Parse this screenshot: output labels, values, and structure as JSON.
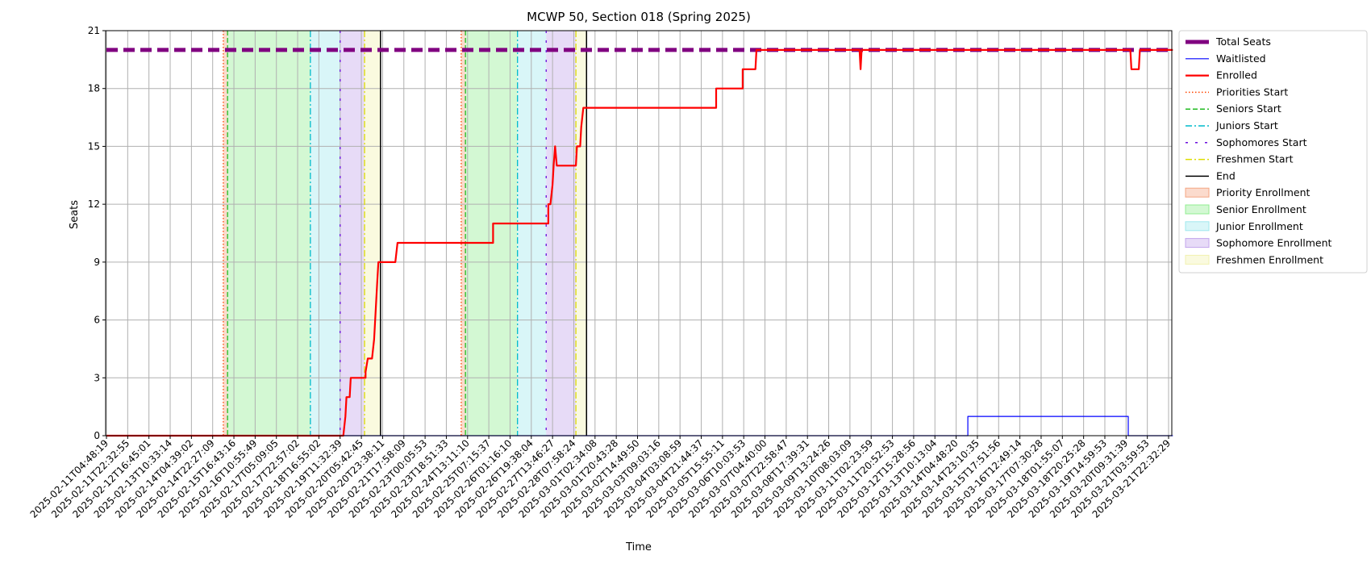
{
  "chart_data": {
    "type": "line",
    "title": "MCWP 50, Section 018 (Spring 2025)",
    "xlabel": "Time",
    "ylabel": "Seats",
    "ylim": [
      0,
      21
    ],
    "y_ticks": [
      0,
      3,
      6,
      9,
      12,
      15,
      18,
      21
    ],
    "grid": true,
    "legend_placement": "outside-right-top",
    "x_tick_labels": [
      "2025-02-11T04:48:19",
      "2025-02-11T22:32:55",
      "2025-02-12T16:45:01",
      "2025-02-13T10:33:14",
      "2025-02-14T04:39:02",
      "2025-02-14T22:27:09",
      "2025-02-15T16:43:16",
      "2025-02-16T10:55:49",
      "2025-02-17T05:09:05",
      "2025-02-17T22:57:02",
      "2025-02-18T16:55:02",
      "2025-02-19T11:32:39",
      "2025-02-20T05:42:45",
      "2025-02-20T23:38:11",
      "2025-02-21T17:58:09",
      "2025-02-23T00:05:53",
      "2025-02-23T18:51:33",
      "2025-02-24T13:11:10",
      "2025-02-25T07:15:37",
      "2025-02-26T01:16:10",
      "2025-02-26T19:38:04",
      "2025-02-27T13:46:27",
      "2025-02-28T07:58:24",
      "2025-03-01T02:34:08",
      "2025-03-01T20:43:28",
      "2025-03-02T14:49:50",
      "2025-03-03T09:03:16",
      "2025-03-04T03:08:59",
      "2025-03-04T21:44:37",
      "2025-03-05T15:55:11",
      "2025-03-06T10:03:53",
      "2025-03-07T04:40:00",
      "2025-03-07T22:58:47",
      "2025-03-08T17:39:31",
      "2025-03-09T13:24:26",
      "2025-03-10T08:03:09",
      "2025-03-11T02:23:59",
      "2025-03-11T20:52:53",
      "2025-03-12T15:28:56",
      "2025-03-13T10:13:04",
      "2025-03-14T04:48:20",
      "2025-03-14T23:10:35",
      "2025-03-15T17:51:56",
      "2025-03-16T12:49:14",
      "2025-03-17T07:30:28",
      "2025-03-18T01:55:07",
      "2025-03-18T20:25:28",
      "2025-03-19T14:59:53",
      "2025-03-20T09:31:39",
      "2025-03-21T03:59:53",
      "2025-03-21T22:32:29"
    ],
    "x_range_ticks": [
      0,
      50
    ],
    "series": [
      {
        "name": "Total Seats",
        "color": "#800080",
        "style": "dashed-thick",
        "points": [
          [
            0,
            20
          ],
          [
            50.2,
            20
          ]
        ]
      },
      {
        "name": "Waitlisted",
        "color": "#0000ff",
        "style": "solid-thin",
        "points": [
          [
            0,
            0
          ],
          [
            40.55,
            0
          ],
          [
            40.55,
            1
          ],
          [
            48.1,
            1
          ],
          [
            48.1,
            0
          ],
          [
            50.2,
            0
          ]
        ]
      },
      {
        "name": "Enrolled",
        "color": "#ff0000",
        "style": "solid",
        "points": [
          [
            0,
            0
          ],
          [
            11.15,
            0
          ],
          [
            11.25,
            1
          ],
          [
            11.3,
            2
          ],
          [
            11.45,
            2
          ],
          [
            11.5,
            3
          ],
          [
            12.2,
            3
          ],
          [
            12.2,
            3.3
          ],
          [
            12.3,
            4
          ],
          [
            12.5,
            4
          ],
          [
            12.6,
            5
          ],
          [
            12.65,
            6
          ],
          [
            12.7,
            7
          ],
          [
            12.75,
            8
          ],
          [
            12.8,
            9
          ],
          [
            13.6,
            9
          ],
          [
            13.7,
            10
          ],
          [
            18.2,
            10
          ],
          [
            18.2,
            11
          ],
          [
            20.8,
            11
          ],
          [
            20.8,
            12
          ],
          [
            20.9,
            12
          ],
          [
            21.0,
            13
          ],
          [
            21.05,
            14
          ],
          [
            21.12,
            15
          ],
          [
            21.2,
            14
          ],
          [
            22.1,
            14
          ],
          [
            22.15,
            15
          ],
          [
            22.3,
            15
          ],
          [
            22.35,
            16
          ],
          [
            22.45,
            17
          ],
          [
            28.7,
            17
          ],
          [
            28.7,
            18
          ],
          [
            29.95,
            18
          ],
          [
            29.95,
            19
          ],
          [
            30.55,
            19
          ],
          [
            30.6,
            20
          ],
          [
            35.45,
            20
          ],
          [
            35.5,
            19
          ],
          [
            35.55,
            20
          ],
          [
            48.2,
            20
          ],
          [
            48.25,
            19
          ],
          [
            48.6,
            19
          ],
          [
            48.65,
            20
          ],
          [
            50.2,
            20
          ]
        ]
      }
    ],
    "vertical_lines": [
      {
        "name": "Priorities Start",
        "color": "#ff4500",
        "style": "dotted",
        "x": [
          5.5,
          16.7
        ]
      },
      {
        "name": "Seniors Start",
        "color": "#22bb22",
        "style": "dashed",
        "x": [
          5.7,
          16.9
        ]
      },
      {
        "name": "Juniors Start",
        "color": "#00bbcc",
        "style": "dashdot",
        "x": [
          9.6,
          19.35
        ]
      },
      {
        "name": "Sophomores Start",
        "color": "#6a0dde",
        "style": "dashed-sparse",
        "x": [
          11.0,
          20.7
        ]
      },
      {
        "name": "Freshmen Start",
        "color": "#dddd00",
        "style": "dashdot",
        "x": [
          12.15,
          22.1
        ]
      },
      {
        "name": "End",
        "color": "#000000",
        "style": "solid",
        "x": [
          12.9,
          22.6
        ]
      }
    ],
    "shaded_regions": [
      {
        "name": "Priority Enrollment",
        "color": "#f4a582",
        "spans": [
          [
            5.5,
            5.7
          ],
          [
            16.7,
            16.9
          ]
        ]
      },
      {
        "name": "Senior Enrollment",
        "color": "#90ee90",
        "spans": [
          [
            5.7,
            9.6
          ],
          [
            16.9,
            19.35
          ]
        ]
      },
      {
        "name": "Junior Enrollment",
        "color": "#a0e8ee",
        "spans": [
          [
            9.6,
            11.0
          ],
          [
            19.35,
            20.7
          ]
        ]
      },
      {
        "name": "Sophomore Enrollment",
        "color": "#c3a6ec",
        "spans": [
          [
            11.0,
            12.15
          ],
          [
            20.7,
            22.1
          ]
        ]
      },
      {
        "name": "Freshmen Enrollment",
        "color": "#f2f2b0",
        "spans": [
          [
            12.15,
            12.9
          ],
          [
            22.1,
            22.6
          ]
        ]
      }
    ],
    "legend": [
      "Total Seats",
      "Waitlisted",
      "Enrolled",
      "Priorities Start",
      "Seniors Start",
      "Juniors Start",
      "Sophomores Start",
      "Freshmen Start",
      "End",
      "Priority Enrollment",
      "Senior Enrollment",
      "Junior Enrollment",
      "Sophomore Enrollment",
      "Freshmen Enrollment"
    ]
  }
}
